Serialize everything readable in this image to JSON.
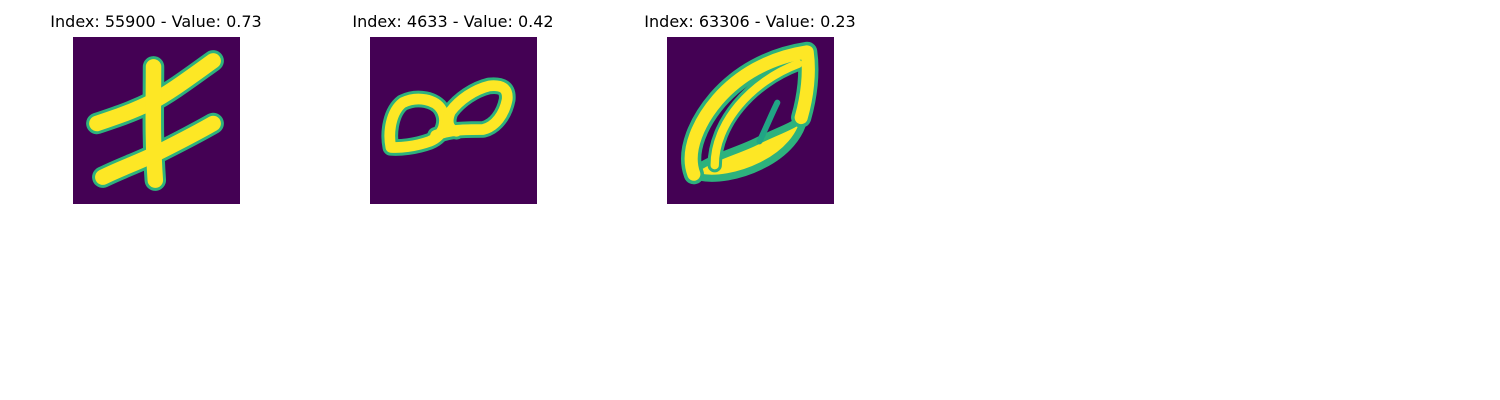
{
  "colors": {
    "background": "#440154",
    "low": "#2db27d",
    "high": "#fde725",
    "mid": "#21a585"
  },
  "panels": [
    {
      "title": "Index: 55900 - Value: 0.73",
      "index": 55900,
      "value": 0.73,
      "image": "handwritten-glyph-crossed-strokes"
    },
    {
      "title": "Index: 4633 - Value: 0.42",
      "index": 4633,
      "value": 0.42,
      "image": "handwritten-glyph-double-loop"
    },
    {
      "title": "Index: 63306 - Value: 0.23",
      "index": 63306,
      "value": 0.23,
      "image": "handwritten-glyph-leaf-loop"
    }
  ]
}
